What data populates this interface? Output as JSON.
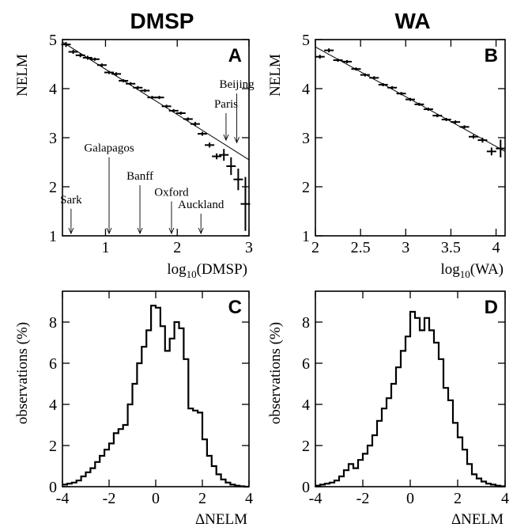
{
  "titles": {
    "left": "DMSP",
    "right": "WA"
  },
  "chart_data": [
    {
      "panel": "A",
      "type": "scatter",
      "xlabel_base": "log",
      "xlabel_sub": "10",
      "xlabel_arg": "(DMSP)",
      "ylabel": "NELM",
      "xlim": [
        0.4,
        3.0
      ],
      "ylim": [
        1,
        5
      ],
      "xticks": [
        1,
        2,
        3
      ],
      "yticks": [
        1,
        2,
        3,
        4,
        5
      ],
      "points": [
        {
          "x": 0.45,
          "y": 4.9,
          "ey": 0.05
        },
        {
          "x": 0.55,
          "y": 4.75,
          "ey": 0.04
        },
        {
          "x": 0.65,
          "y": 4.68,
          "ey": 0.04
        },
        {
          "x": 0.75,
          "y": 4.63,
          "ey": 0.04
        },
        {
          "x": 0.85,
          "y": 4.6,
          "ey": 0.03
        },
        {
          "x": 0.95,
          "y": 4.48,
          "ey": 0.03
        },
        {
          "x": 1.05,
          "y": 4.33,
          "ey": 0.03
        },
        {
          "x": 1.15,
          "y": 4.3,
          "ey": 0.03
        },
        {
          "x": 1.25,
          "y": 4.16,
          "ey": 0.03
        },
        {
          "x": 1.35,
          "y": 4.1,
          "ey": 0.03
        },
        {
          "x": 1.45,
          "y": 4.02,
          "ey": 0.03
        },
        {
          "x": 1.55,
          "y": 3.96,
          "ey": 0.03
        },
        {
          "x": 1.65,
          "y": 3.82,
          "ey": 0.03
        },
        {
          "x": 1.75,
          "y": 3.82,
          "ey": 0.03
        },
        {
          "x": 1.85,
          "y": 3.64,
          "ey": 0.03
        },
        {
          "x": 1.95,
          "y": 3.55,
          "ey": 0.03
        },
        {
          "x": 2.05,
          "y": 3.5,
          "ey": 0.03
        },
        {
          "x": 2.15,
          "y": 3.38,
          "ey": 0.03
        },
        {
          "x": 2.25,
          "y": 3.28,
          "ey": 0.04
        },
        {
          "x": 2.35,
          "y": 3.08,
          "ey": 0.04
        },
        {
          "x": 2.45,
          "y": 2.85,
          "ey": 0.05
        },
        {
          "x": 2.55,
          "y": 2.62,
          "ey": 0.06
        },
        {
          "x": 2.65,
          "y": 2.65,
          "ey": 0.12
        },
        {
          "x": 2.75,
          "y": 2.42,
          "ey": 0.18
        },
        {
          "x": 2.85,
          "y": 2.15,
          "ey": 0.22
        },
        {
          "x": 2.95,
          "y": 1.65,
          "ey": 0.55
        }
      ],
      "fit_line": {
        "x": [
          0.4,
          3.0
        ],
        "y": [
          4.95,
          2.55
        ]
      },
      "annotations": [
        {
          "label": "Sark",
          "x": 0.52,
          "label_y": 1.6
        },
        {
          "label": "Galapagos",
          "x": 1.05,
          "label_y": 2.65
        },
        {
          "label": "Banff",
          "x": 1.48,
          "label_y": 2.08
        },
        {
          "label": "Oxford",
          "x": 1.92,
          "label_y": 1.75
        },
        {
          "label": "Auckland",
          "x": 2.33,
          "label_y": 1.5
        },
        {
          "label": "Beijing",
          "x": 2.83,
          "label_y": 3.95
        },
        {
          "label": "Paris",
          "x": 2.68,
          "label_y": 3.55
        }
      ]
    },
    {
      "panel": "B",
      "type": "scatter",
      "xlabel_base": "log",
      "xlabel_sub": "10",
      "xlabel_arg": "(WA)",
      "ylabel": "NELM",
      "xlim": [
        2.0,
        4.1
      ],
      "ylim": [
        1,
        5
      ],
      "xticks": [
        2,
        2.5,
        3,
        3.5,
        4
      ],
      "xtick_labels": [
        "2",
        "2.5",
        "3",
        "3.5",
        "4"
      ],
      "yticks": [
        1,
        2,
        3,
        4,
        5
      ],
      "points": [
        {
          "x": 2.05,
          "y": 4.65,
          "ey": 0.04
        },
        {
          "x": 2.15,
          "y": 4.78,
          "ey": 0.04
        },
        {
          "x": 2.25,
          "y": 4.58,
          "ey": 0.03
        },
        {
          "x": 2.35,
          "y": 4.55,
          "ey": 0.03
        },
        {
          "x": 2.45,
          "y": 4.4,
          "ey": 0.03
        },
        {
          "x": 2.55,
          "y": 4.28,
          "ey": 0.03
        },
        {
          "x": 2.65,
          "y": 4.22,
          "ey": 0.03
        },
        {
          "x": 2.75,
          "y": 4.08,
          "ey": 0.03
        },
        {
          "x": 2.85,
          "y": 4.02,
          "ey": 0.03
        },
        {
          "x": 2.95,
          "y": 3.9,
          "ey": 0.03
        },
        {
          "x": 3.05,
          "y": 3.78,
          "ey": 0.03
        },
        {
          "x": 3.15,
          "y": 3.68,
          "ey": 0.03
        },
        {
          "x": 3.25,
          "y": 3.58,
          "ey": 0.03
        },
        {
          "x": 3.35,
          "y": 3.45,
          "ey": 0.03
        },
        {
          "x": 3.45,
          "y": 3.37,
          "ey": 0.03
        },
        {
          "x": 3.55,
          "y": 3.32,
          "ey": 0.03
        },
        {
          "x": 3.65,
          "y": 3.22,
          "ey": 0.03
        },
        {
          "x": 3.75,
          "y": 3.02,
          "ey": 0.04
        },
        {
          "x": 3.85,
          "y": 2.95,
          "ey": 0.05
        },
        {
          "x": 3.95,
          "y": 2.72,
          "ey": 0.08
        },
        {
          "x": 4.05,
          "y": 2.78,
          "ey": 0.18
        }
      ],
      "fit_line": {
        "x": [
          2.0,
          4.1
        ],
        "y": [
          4.85,
          2.72
        ]
      }
    },
    {
      "panel": "C",
      "type": "histogram",
      "xlabel": "ΔNELM",
      "ylabel": "observations (%)",
      "xlim": [
        -4,
        4
      ],
      "ylim": [
        0,
        9.5
      ],
      "xticks": [
        -4,
        -2,
        0,
        2,
        4
      ],
      "yticks": [
        0,
        2,
        4,
        6,
        8
      ],
      "bin_start": -4,
      "bin_width": 0.2,
      "values": [
        0.1,
        0.15,
        0.2,
        0.3,
        0.5,
        0.7,
        0.9,
        1.2,
        1.5,
        1.8,
        2.1,
        2.6,
        2.8,
        3.0,
        4.0,
        5.0,
        6.0,
        6.8,
        7.6,
        8.8,
        8.7,
        7.8,
        6.6,
        7.2,
        8.0,
        7.7,
        6.2,
        3.8,
        3.7,
        3.6,
        2.3,
        1.5,
        1.0,
        0.6,
        0.35,
        0.2,
        0.1,
        0.05,
        0.02,
        0.0
      ]
    },
    {
      "panel": "D",
      "type": "histogram",
      "xlabel": "ΔNELM",
      "ylabel": "observations (%)",
      "xlim": [
        -4,
        4
      ],
      "ylim": [
        0,
        9.5
      ],
      "xticks": [
        -4,
        -2,
        0,
        2,
        4
      ],
      "yticks": [
        0,
        2,
        4,
        6,
        8
      ],
      "bin_start": -4,
      "bin_width": 0.2,
      "values": [
        0.05,
        0.1,
        0.15,
        0.2,
        0.3,
        0.5,
        0.8,
        1.1,
        0.9,
        1.3,
        1.6,
        2.0,
        2.5,
        3.2,
        3.8,
        4.3,
        5.0,
        5.8,
        6.6,
        7.3,
        8.5,
        8.2,
        7.6,
        8.2,
        7.6,
        7.0,
        6.2,
        4.8,
        4.2,
        3.1,
        2.4,
        1.8,
        1.1,
        0.6,
        0.4,
        0.25,
        0.15,
        0.1,
        0.05,
        0.02
      ]
    }
  ]
}
